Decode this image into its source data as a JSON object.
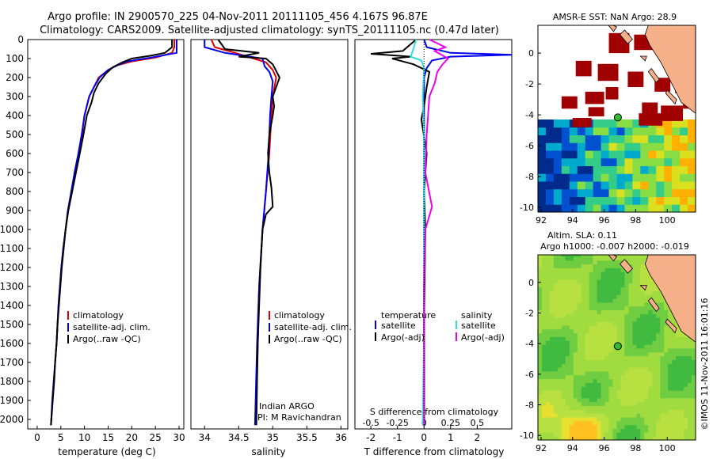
{
  "header": {
    "line1": "Argo profile: IN 2900570_225 04-Nov-2011 20111105_456 4.167S 96.87E",
    "line2": "Climatology: CARS2009. Satellite-adjusted climatology: synTS_20111105.nc (0.47d later)"
  },
  "colors": {
    "climatology": "#dd0000",
    "satellite": "#0000ee",
    "argo": "#000000",
    "satellite_salinity": "#33dddd",
    "argo_salinity": "#ee00ee",
    "sst_warm": "#a00000",
    "marker": "#33bb33",
    "land": "#f5b08a"
  },
  "chart_data": [
    {
      "type": "line",
      "name": "temperature-profile",
      "xlabel": "temperature (deg C)",
      "ylabel": "",
      "xlim": [
        -2,
        31
      ],
      "ylim": [
        0,
        2050
      ],
      "xticks": [
        "0",
        "5",
        "10",
        "15",
        "20",
        "25",
        "30"
      ],
      "xtick_values": [
        0,
        5,
        10,
        15,
        20,
        25,
        30
      ],
      "yticks": [
        "0",
        "100",
        "200",
        "300",
        "400",
        "500",
        "600",
        "700",
        "800",
        "900",
        "1000",
        "1100",
        "1200",
        "1300",
        "1400",
        "1500",
        "1600",
        "1700",
        "1800",
        "1900",
        "2000"
      ],
      "ytick_values": [
        0,
        100,
        200,
        300,
        400,
        500,
        600,
        700,
        800,
        900,
        1000,
        1100,
        1200,
        1300,
        1400,
        1500,
        1600,
        1700,
        1800,
        1900,
        2000
      ],
      "legend": [
        "climatology",
        "satellite-adj. clim.",
        "Argo(..raw -QC)"
      ],
      "series": [
        {
          "name": "climatology",
          "color_key": "climatology",
          "points": [
            [
              29,
              0
            ],
            [
              29,
              40
            ],
            [
              28.5,
              70
            ],
            [
              25,
              95
            ],
            [
              20,
              115
            ],
            [
              17,
              135
            ],
            [
              15,
              160
            ],
            [
              13,
              200
            ],
            [
              12,
              250
            ],
            [
              11,
              300
            ],
            [
              10,
              400
            ],
            [
              9.5,
              500
            ],
            [
              8.8,
              600
            ],
            [
              8,
              700
            ],
            [
              7.3,
              800
            ],
            [
              6.5,
              900
            ],
            [
              6,
              1000
            ],
            [
              5.5,
              1100
            ],
            [
              5.1,
              1200
            ],
            [
              4.8,
              1300
            ],
            [
              4.5,
              1400
            ],
            [
              4.3,
              1500
            ],
            [
              4.1,
              1600
            ],
            [
              3.8,
              1700
            ],
            [
              3.5,
              1800
            ],
            [
              3.2,
              1900
            ],
            [
              3,
              2000
            ],
            [
              2.9,
              2030
            ]
          ]
        },
        {
          "name": "satellite-adj. clim.",
          "color_key": "satellite",
          "points": [
            [
              29.5,
              0
            ],
            [
              29.5,
              40
            ],
            [
              29.5,
              70
            ],
            [
              24,
              95
            ],
            [
              19,
              115
            ],
            [
              17,
              135
            ],
            [
              15,
              160
            ],
            [
              13.2,
              200
            ],
            [
              12,
              250
            ],
            [
              11,
              300
            ],
            [
              10,
              400
            ],
            [
              9.4,
              500
            ],
            [
              8.7,
              600
            ],
            [
              7.9,
              700
            ],
            [
              7.2,
              800
            ],
            [
              6.5,
              900
            ],
            [
              6,
              1000
            ],
            [
              5.5,
              1100
            ],
            [
              5.1,
              1200
            ],
            [
              4.8,
              1300
            ],
            [
              4.5,
              1400
            ],
            [
              4.3,
              1500
            ],
            [
              4.1,
              1600
            ],
            [
              3.8,
              1700
            ],
            [
              3.5,
              1800
            ],
            [
              3.2,
              1900
            ],
            [
              3,
              2000
            ],
            [
              2.9,
              2030
            ]
          ]
        },
        {
          "name": "Argo(..raw -QC)",
          "color_key": "argo",
          "points": [
            [
              28.5,
              0
            ],
            [
              28.5,
              40
            ],
            [
              27,
              70
            ],
            [
              24,
              85
            ],
            [
              20,
              100
            ],
            [
              18,
              120
            ],
            [
              16,
              145
            ],
            [
              14.5,
              180
            ],
            [
              13,
              230
            ],
            [
              12,
              280
            ],
            [
              11.5,
              330
            ],
            [
              10.5,
              400
            ],
            [
              9.8,
              500
            ],
            [
              9,
              600
            ],
            [
              8.2,
              700
            ],
            [
              7.4,
              800
            ],
            [
              6.6,
              900
            ],
            [
              6,
              1000
            ],
            [
              5.6,
              1100
            ],
            [
              5.2,
              1200
            ],
            [
              4.9,
              1300
            ],
            [
              4.6,
              1400
            ],
            [
              4.3,
              1500
            ],
            [
              4.1,
              1600
            ],
            [
              3.8,
              1700
            ],
            [
              3.6,
              1800
            ],
            [
              3.3,
              1900
            ],
            [
              3,
              2000
            ],
            [
              2.9,
              2030
            ]
          ]
        }
      ]
    },
    {
      "type": "line",
      "name": "salinity-profile",
      "xlabel": "salinity",
      "xlim": [
        33.8,
        36.1
      ],
      "ylim": [
        0,
        2050
      ],
      "xticks": [
        "34",
        "34.5",
        "35",
        "35.5",
        "36"
      ],
      "xtick_values": [
        34,
        34.5,
        35,
        35.5,
        36
      ],
      "legend": [
        "climatology",
        "satellite-adj. clim.",
        "Argo(..raw -QC)"
      ],
      "note_line1": "Indian ARGO",
      "note_line2": "PI: M Ravichandran",
      "series": [
        {
          "name": "climatology",
          "color_key": "climatology",
          "points": [
            [
              34.1,
              0
            ],
            [
              34.15,
              40
            ],
            [
              34.45,
              70
            ],
            [
              34.9,
              120
            ],
            [
              35.0,
              160
            ],
            [
              35.05,
              200
            ],
            [
              35.0,
              300
            ],
            [
              34.98,
              400
            ],
            [
              34.95,
              600
            ],
            [
              34.9,
              800
            ],
            [
              34.85,
              1000
            ],
            [
              34.8,
              1300
            ],
            [
              34.78,
              1600
            ],
            [
              34.75,
              2030
            ]
          ]
        },
        {
          "name": "satellite-adj. clim.",
          "color_key": "satellite",
          "points": [
            [
              34.0,
              0
            ],
            [
              34.0,
              40
            ],
            [
              34.3,
              70
            ],
            [
              34.85,
              100
            ],
            [
              34.88,
              140
            ],
            [
              34.95,
              170
            ],
            [
              35.0,
              220
            ],
            [
              34.98,
              300
            ],
            [
              34.96,
              400
            ],
            [
              34.94,
              600
            ],
            [
              34.9,
              800
            ],
            [
              34.85,
              1000
            ],
            [
              34.8,
              1300
            ],
            [
              34.77,
              1600
            ],
            [
              34.74,
              2030
            ]
          ]
        },
        {
          "name": "Argo(..raw -QC)",
          "color_key": "argo",
          "points": [
            [
              34.2,
              0
            ],
            [
              34.3,
              50
            ],
            [
              34.8,
              70
            ],
            [
              34.5,
              90
            ],
            [
              34.9,
              100
            ],
            [
              35.0,
              130
            ],
            [
              35.1,
              200
            ],
            [
              35.0,
              300
            ],
            [
              35.02,
              350
            ],
            [
              35.0,
              400
            ],
            [
              34.95,
              500
            ],
            [
              34.93,
              600
            ],
            [
              34.95,
              700
            ],
            [
              34.98,
              780
            ],
            [
              35.0,
              880
            ],
            [
              34.9,
              920
            ],
            [
              34.85,
              1000
            ],
            [
              34.82,
              1200
            ],
            [
              34.8,
              1400
            ],
            [
              34.78,
              1600
            ],
            [
              34.77,
              1800
            ],
            [
              34.76,
              2030
            ]
          ]
        }
      ]
    },
    {
      "type": "line",
      "name": "difference-profile",
      "xlabel": "T difference from climatology",
      "top_axis_label": "S difference from climatology",
      "xlim": [
        -2.6,
        3.3
      ],
      "ylim": [
        0,
        2050
      ],
      "xticks": [
        "-2",
        "-1",
        "0",
        "1",
        "2"
      ],
      "xtick_values": [
        -2,
        -1,
        0,
        1,
        2
      ],
      "sticks": [
        "-0.5",
        "-0.25",
        "0",
        "0.25",
        "0.5"
      ],
      "stick_values": [
        -0.5,
        -0.25,
        0,
        0.25,
        0.5
      ],
      "legend_temperature_title": "temperature",
      "legend_salinity_title": "salinity",
      "legend_satellite": "satellite",
      "legend_argo": "Argo(-adj)",
      "series": [
        {
          "name": "temperature satellite",
          "color_key": "satellite",
          "points": [
            [
              0,
              0
            ],
            [
              0.1,
              40
            ],
            [
              1.0,
              70
            ],
            [
              3.3,
              80
            ],
            [
              1.0,
              90
            ],
            [
              0.3,
              110
            ],
            [
              0.1,
              150
            ],
            [
              0,
              200
            ],
            [
              0,
              400
            ],
            [
              0,
              2030
            ]
          ]
        },
        {
          "name": "temperature Argo(-adj)",
          "color_key": "argo",
          "points": [
            [
              -0.3,
              0
            ],
            [
              -0.8,
              60
            ],
            [
              -2.0,
              75
            ],
            [
              -0.5,
              90
            ],
            [
              -1.2,
              100
            ],
            [
              -0.4,
              130
            ],
            [
              0.2,
              170
            ],
            [
              0.1,
              250
            ],
            [
              0.0,
              350
            ],
            [
              -0.1,
              420
            ],
            [
              0.1,
              600
            ],
            [
              0,
              800
            ],
            [
              0.05,
              1000
            ],
            [
              0,
              1500
            ],
            [
              0,
              2030
            ]
          ]
        },
        {
          "name": "salinity satellite",
          "color_key": "satellite_salinity",
          "points": [
            [
              -0.3,
              0
            ],
            [
              -0.4,
              50
            ],
            [
              -0.5,
              90
            ],
            [
              -0.1,
              110
            ],
            [
              0.0,
              150
            ],
            [
              -0.05,
              300
            ],
            [
              0.0,
              500
            ],
            [
              0,
              1000
            ],
            [
              0,
              1500
            ],
            [
              -0.05,
              2030
            ]
          ]
        },
        {
          "name": "salinity Argo(-adj)",
          "color_key": "argo_salinity",
          "points": [
            [
              0.2,
              0
            ],
            [
              0.8,
              40
            ],
            [
              0.4,
              60
            ],
            [
              0.9,
              100
            ],
            [
              0.7,
              130
            ],
            [
              0.5,
              170
            ],
            [
              0.4,
              230
            ],
            [
              0.2,
              300
            ],
            [
              0.1,
              500
            ],
            [
              0.05,
              700
            ],
            [
              0.3,
              880
            ],
            [
              0.05,
              1000
            ],
            [
              0,
              1300
            ],
            [
              0,
              1500
            ],
            [
              0,
              2030
            ]
          ]
        }
      ]
    },
    {
      "type": "heatmap",
      "name": "sst-map",
      "title": "AMSR-E SST: NaN Argo: 28.9",
      "xlim": [
        91.8,
        101.8
      ],
      "ylim": [
        -10.3,
        1.8
      ],
      "xticks": [
        "92",
        "94",
        "96",
        "98",
        "100"
      ],
      "xtick_values": [
        92,
        94,
        96,
        98,
        100
      ],
      "yticks": [
        "0",
        "-2",
        "-4",
        "-6",
        "-8",
        "-10"
      ],
      "ytick_values": [
        0,
        -2,
        -4,
        -6,
        -8,
        -10
      ],
      "argo_position": [
        96.87,
        -4.167
      ]
    },
    {
      "type": "heatmap",
      "name": "sla-map",
      "title_line1": "Altim. SLA: 0.11",
      "title_line2": "Argo h1000: -0.007 h2000: -0.019",
      "xlim": [
        91.8,
        101.8
      ],
      "ylim": [
        -10.3,
        1.8
      ],
      "xticks": [
        "92",
        "94",
        "96",
        "98",
        "100"
      ],
      "xtick_values": [
        92,
        94,
        96,
        98,
        100
      ],
      "yticks": [
        "0",
        "-2",
        "-4",
        "-6",
        "-8",
        "-10"
      ],
      "ytick_values": [
        0,
        -2,
        -4,
        -6,
        -8,
        -10
      ],
      "argo_position": [
        96.87,
        -4.167
      ]
    }
  ],
  "footer": {
    "credit": "©IMOS 11-Nov-2011 16:01:16"
  }
}
